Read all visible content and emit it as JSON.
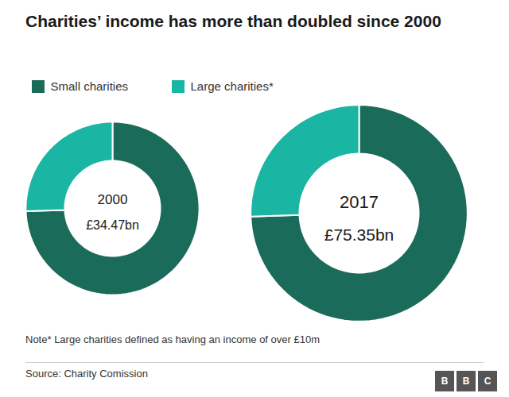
{
  "chart_data": [
    {
      "type": "pie",
      "title": "Charities’ income has more than doubled since 2000",
      "categories": [
        "Small charities",
        "Large charities*"
      ],
      "values": [
        74.5,
        25.5
      ],
      "colors": [
        "#1a6b5a",
        "#1ab5a3"
      ],
      "legend": "top left",
      "annotations": [
        "2000",
        "£34.47bn"
      ]
    },
    {
      "type": "pie",
      "categories": [
        "Small charities",
        "Large charities*"
      ],
      "values": [
        74.5,
        25.5
      ],
      "colors": [
        "#1a6b5a",
        "#1ab5a3"
      ],
      "annotations": [
        "2017",
        "£75.35bn",
        "Note* Large charities defined as having an income of over £10m",
        "Source: Charity Comission",
        "BBC"
      ]
    }
  ]
}
